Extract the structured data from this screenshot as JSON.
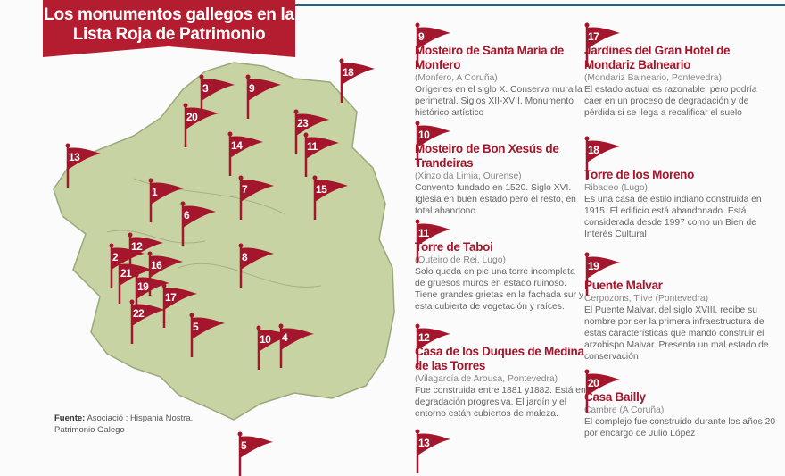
{
  "title": "Los monumentos gallegos en la Lista Roja de Patrimonio",
  "colors": {
    "accent": "#a3162b",
    "map_fill": "#c8d3a3",
    "topline": "#2f5f78"
  },
  "map": {
    "flags": [
      "3",
      "9",
      "18",
      "20",
      "23",
      "11",
      "14",
      "13",
      "1",
      "7",
      "15",
      "6",
      "12",
      "2",
      "21",
      "16",
      "8",
      "19",
      "17",
      "22",
      "5",
      "10",
      "4",
      "5"
    ]
  },
  "source": {
    "label": "Fuente:",
    "text": "Asociació : Hispania Nostra. Patrimonio Galego"
  },
  "items": [
    {
      "num": "9",
      "title": "Mosteiro de Santa María de Monfero",
      "location": "(Monfero, A Coruña)",
      "text": "Orígenes en el siglo X. Conserva muralla perimetral. Siglos XII-XVII. Monumento histórico artístico"
    },
    {
      "num": "10",
      "title": "Mosteiro de Bon Xesús de Trandeiras",
      "location": "(Xinzo da Limia, Ourense)",
      "text": "Convento fundado en 1520. Siglo XVI. Iglesia en buen estado pero el resto, en total abandono."
    },
    {
      "num": "11",
      "title": "Torre de Taboi",
      "location": "(Outeiro de Rei, Lugo)",
      "text": "Solo queda en pie una torre incompleta de gruesos muros en estado ruinoso. Tiene grandes grietas en la fachada sur y esta cubierta de vegetación y raíces."
    },
    {
      "num": "12",
      "title": "Casa de los Duques de Medina de las Torres",
      "location": "(Vilagarcía de Arousa, Pontevedra)",
      "text": "Fue construida entre 1881 y1882. Está en degradación progresiva. El jardín y el entorno están cubiertos de maleza."
    },
    {
      "num": "13",
      "title": "",
      "location": "",
      "text": ""
    },
    {
      "num": "17",
      "title": "Jardines del Gran Hotel de Mondariz Balneario",
      "location": "(Mondariz Balneario, Pontevedra)",
      "text": "El estado actual es razonable, pero podría caer en un proceso de degradación y de pérdida si se llega a recalificar el suelo"
    },
    {
      "num": "18",
      "title": "Torre de los Moreno",
      "location": "Ribadeo (Lugo)",
      "text": "Es una casa de estilo indiano construida en 1915. El edificio está abandonado. Está considerada desde 1997 como un Bien de Interés Cultural"
    },
    {
      "num": "19",
      "title": "Puente Malvar",
      "location": "Cerpozons, Tiive (Pontevedra)",
      "text": "El Puente Malvar, del siglo XVIII, recibe su nombre por ser la primera infraestructura de estas características que mandó construir el arzobispo Malvar. Presenta un mal estado de conservación"
    },
    {
      "num": "20",
      "title": "Casa Bailly",
      "location": "Cambre (A Coruña)",
      "text": "El complejo fue construido durante los años 20 por encargo de Julio López"
    }
  ]
}
